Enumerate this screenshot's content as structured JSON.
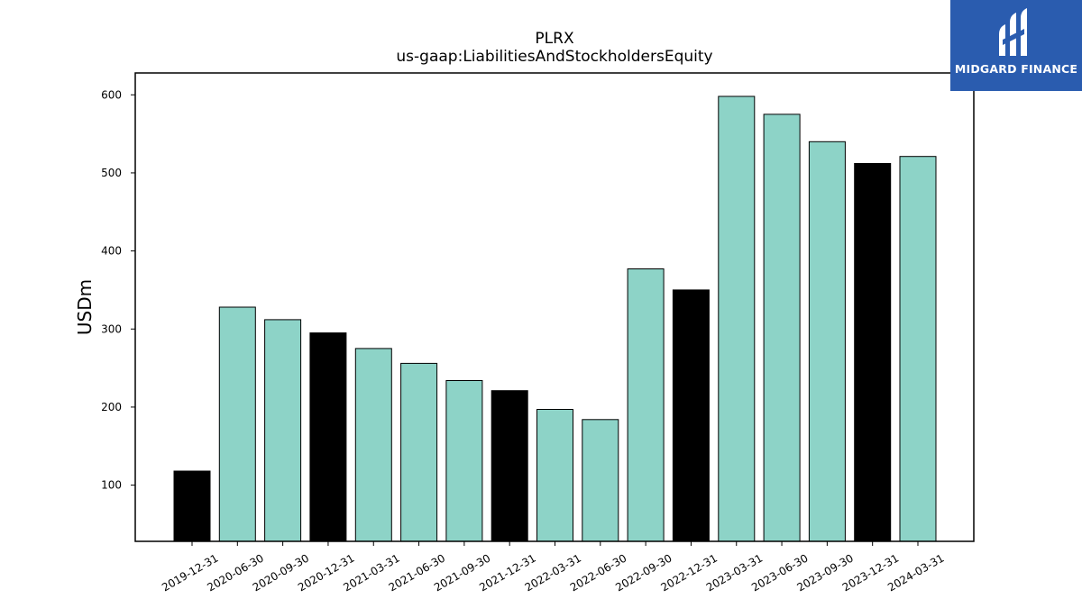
{
  "brand": {
    "name": "MIDGARD FINANCE",
    "bg_color": "#2a5caf"
  },
  "chart_data": {
    "type": "bar",
    "title": "PLRX",
    "subtitle": "us-gaap:LiabilitiesAndStockholdersEquity",
    "xlabel": "",
    "ylabel": "USDm",
    "categories": [
      "2019-12-31",
      "2020-06-30",
      "2020-09-30",
      "2020-12-31",
      "2021-03-31",
      "2021-06-30",
      "2021-09-30",
      "2021-12-31",
      "2022-03-31",
      "2022-06-30",
      "2022-09-30",
      "2022-12-31",
      "2023-03-31",
      "2023-06-30",
      "2023-09-30",
      "2023-12-31",
      "2024-03-31"
    ],
    "values": [
      118,
      328,
      312,
      295,
      275,
      256,
      234,
      221,
      197,
      184,
      377,
      350,
      598,
      575,
      540,
      512,
      521
    ],
    "bar_colors": [
      "#000000",
      "#8dd3c7",
      "#8dd3c7",
      "#000000",
      "#8dd3c7",
      "#8dd3c7",
      "#8dd3c7",
      "#000000",
      "#8dd3c7",
      "#8dd3c7",
      "#8dd3c7",
      "#000000",
      "#8dd3c7",
      "#8dd3c7",
      "#8dd3c7",
      "#000000",
      "#8dd3c7"
    ],
    "yticks": [
      100,
      200,
      300,
      400,
      500,
      600
    ],
    "ylim": [
      28,
      628
    ],
    "grid": false,
    "legend": "none"
  }
}
